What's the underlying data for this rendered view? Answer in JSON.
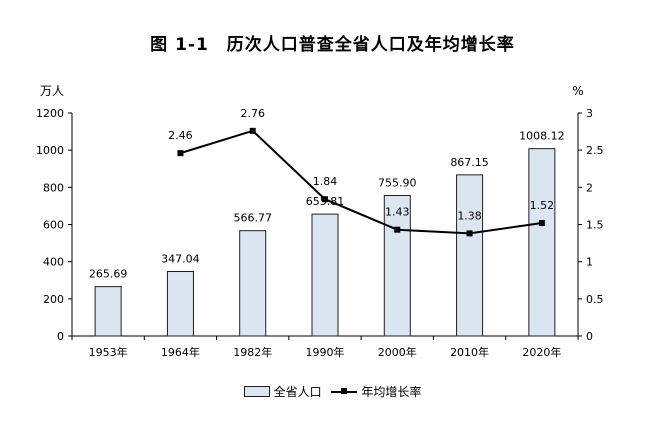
{
  "title": "图 1-1　历次人口普查全省人口及年均增长率",
  "chart_data": {
    "type": "bar+line",
    "categories": [
      "1953年",
      "1964年",
      "1982年",
      "1990年",
      "2000年",
      "2010年",
      "2020年"
    ],
    "series": [
      {
        "name": "全省人口",
        "type": "bar",
        "axis": "left",
        "values": [
          265.69,
          347.04,
          566.77,
          655.81,
          755.9,
          867.15,
          1008.12
        ],
        "labels": [
          "265.69",
          "347.04",
          "566.77",
          "655.81",
          "755.90",
          "867.15",
          "1008.12"
        ]
      },
      {
        "name": "年均增长率",
        "type": "line",
        "axis": "right",
        "values": [
          null,
          2.46,
          2.76,
          1.84,
          1.43,
          1.38,
          1.52
        ],
        "labels": [
          null,
          "2.46",
          "2.76",
          "1.84",
          "1.43",
          "1.38",
          "1.52"
        ]
      }
    ],
    "y_left": {
      "unit": "万人",
      "min": 0,
      "max": 1200,
      "ticks": [
        "0",
        "200",
        "400",
        "600",
        "800",
        "1000",
        "1200"
      ]
    },
    "y_right": {
      "unit": "%",
      "min": 0,
      "max": 3,
      "ticks": [
        "0",
        "0.5",
        "1",
        "1.5",
        "2",
        "2.5",
        "3"
      ]
    },
    "grid": false,
    "legend_position": "bottom",
    "colors": {
      "bar_fill": "#dce6f2",
      "bar_stroke": "#1f1f1f",
      "line": "#000000",
      "axis": "#000000"
    }
  }
}
